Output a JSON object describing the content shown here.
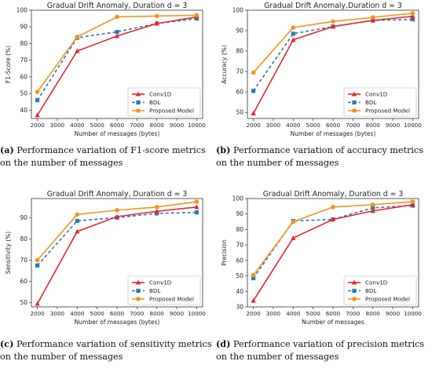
{
  "legend_labels": [
    "Conv1D",
    "BDL",
    "Proposed Model"
  ],
  "xlabel": "Number of messages (bytes)",
  "xlabel_last": "Number of messages",
  "colors": {
    "conv1d": "#e8262c",
    "bdl": "#2b78b8",
    "proposed": "#f5921e"
  },
  "chart_data": [
    {
      "type": "line",
      "title": "Gradual Drift Anomaly, Duration d = 3",
      "xlabel": "Number of messages (bytes)",
      "ylabel": "F1-Score (%)",
      "x": [
        2000,
        4000,
        6000,
        8000,
        10000
      ],
      "xticks": [
        2000,
        3000,
        4000,
        5000,
        6000,
        7000,
        8000,
        9000,
        10000
      ],
      "ylim": [
        35,
        100
      ],
      "yticks": [
        40,
        50,
        60,
        70,
        80,
        90,
        100
      ],
      "series": [
        {
          "name": "Conv1D",
          "values": [
            37,
            75.5,
            84.5,
            92,
            96
          ]
        },
        {
          "name": "BDL",
          "values": [
            46,
            83.5,
            87,
            92,
            95
          ]
        },
        {
          "name": "Proposed Model",
          "values": [
            51,
            84,
            96,
            96.5,
            97
          ]
        }
      ],
      "legend": "bottom-right",
      "grid": false
    },
    {
      "type": "line",
      "title": "Gradual Drift Anomaly,Duration d = 3",
      "xlabel": "Number of messages (bytes)",
      "ylabel": "Accuracy (%)",
      "x": [
        2000,
        4000,
        6000,
        8000,
        10000
      ],
      "xticks": [
        2000,
        3000,
        4000,
        5000,
        6000,
        7000,
        8000,
        9000,
        10000
      ],
      "ylim": [
        47,
        100
      ],
      "yticks": [
        50,
        60,
        70,
        80,
        90,
        100
      ],
      "series": [
        {
          "name": "Conv1D",
          "values": [
            49.5,
            85.5,
            92,
            95,
            97
          ]
        },
        {
          "name": "BDL",
          "values": [
            60.5,
            88.5,
            92,
            95,
            95.5
          ]
        },
        {
          "name": "Proposed Model",
          "values": [
            69.5,
            91.5,
            94.5,
            96.5,
            98.5
          ]
        }
      ],
      "legend": "bottom-right",
      "grid": false
    },
    {
      "type": "line",
      "title": "Gradual Drift Anomaly, Duration d = 3",
      "xlabel": "Number of messages (bytes)",
      "ylabel": "Sensitivity (%)",
      "x": [
        2000,
        4000,
        6000,
        8000,
        10000
      ],
      "xticks": [
        2000,
        3000,
        4000,
        5000,
        6000,
        7000,
        8000,
        9000,
        10000
      ],
      "ylim": [
        48,
        99
      ],
      "yticks": [
        50,
        60,
        70,
        80,
        90
      ],
      "series": [
        {
          "name": "Conv1D",
          "values": [
            49.5,
            83.5,
            90.5,
            93,
            95
          ]
        },
        {
          "name": "BDL",
          "values": [
            67.5,
            88.5,
            90,
            92,
            92.5
          ]
        },
        {
          "name": "Proposed Model",
          "values": [
            70,
            91.5,
            93.5,
            95,
            97.5
          ]
        }
      ],
      "legend": "bottom-right",
      "grid": false
    },
    {
      "type": "line",
      "title": "Gradual Drift Anomaly, Duration d = 3",
      "xlabel": "Number of messages",
      "ylabel": "Precision",
      "x": [
        2000,
        4000,
        6000,
        8000,
        10000
      ],
      "xticks": [
        2000,
        3000,
        4000,
        5000,
        6000,
        7000,
        8000,
        9000,
        10000
      ],
      "ylim": [
        30,
        100
      ],
      "yticks": [
        30,
        40,
        50,
        60,
        70,
        80,
        90,
        100
      ],
      "series": [
        {
          "name": "Conv1D",
          "values": [
            34,
            74.5,
            86.5,
            92,
            96
          ]
        },
        {
          "name": "BDL",
          "values": [
            48.5,
            85.5,
            86.5,
            94,
            95.5
          ]
        },
        {
          "name": "Proposed Model",
          "values": [
            50.5,
            85,
            94.5,
            96,
            98
          ]
        }
      ],
      "legend": "bottom-right",
      "grid": false
    }
  ],
  "captions": [
    {
      "label": "(a)",
      "text": " Performance variation of F1-score metrics on the number of messages"
    },
    {
      "label": "(b)",
      "text": " Performance variation of accuracy metrics on the number of messages"
    },
    {
      "label": "(c)",
      "text": " Performance variation of sensitivity metrics on the number of messages"
    },
    {
      "label": "(d)",
      "text": " Performance variation of precision metrics on the number of messages"
    }
  ]
}
